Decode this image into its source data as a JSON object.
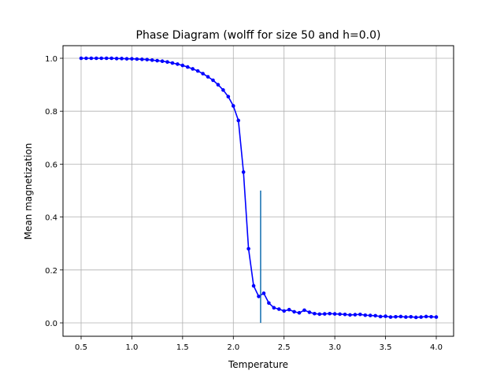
{
  "chart_data": {
    "type": "line",
    "title": "Phase Diagram (wolff for size 50 and h=0.0)",
    "xlabel": "Temperature",
    "ylabel": "Mean magnetization",
    "xlim": [
      0.5,
      4.0
    ],
    "ylim": [
      0.0,
      1.0
    ],
    "x_ticks": [
      "0.5",
      "1.0",
      "1.5",
      "2.0",
      "2.5",
      "3.0",
      "3.5",
      "4.0"
    ],
    "y_ticks": [
      "0.0",
      "0.2",
      "0.4",
      "0.6",
      "0.8",
      "1.0"
    ],
    "grid": true,
    "legend": "none",
    "line_color": "#0000ff",
    "marker_color": "#0000ff",
    "vline_color": "#1f77b4",
    "vline": {
      "x": 2.269,
      "y0": 0.0,
      "y1": 0.5
    },
    "x": [
      0.5,
      0.55,
      0.6,
      0.65,
      0.7,
      0.75,
      0.8,
      0.85,
      0.9,
      0.95,
      1.0,
      1.05,
      1.1,
      1.15,
      1.2,
      1.25,
      1.3,
      1.35,
      1.4,
      1.45,
      1.5,
      1.55,
      1.6,
      1.65,
      1.7,
      1.75,
      1.8,
      1.85,
      1.9,
      1.95,
      2.0,
      2.05,
      2.1,
      2.15,
      2.2,
      2.25,
      2.3,
      2.35,
      2.4,
      2.45,
      2.5,
      2.55,
      2.6,
      2.65,
      2.7,
      2.75,
      2.8,
      2.85,
      2.9,
      2.95,
      3.0,
      3.05,
      3.1,
      3.15,
      3.2,
      3.25,
      3.3,
      3.35,
      3.4,
      3.45,
      3.5,
      3.55,
      3.6,
      3.65,
      3.7,
      3.75,
      3.8,
      3.85,
      3.9,
      3.95,
      4.0
    ],
    "y": [
      1.0,
      1.0,
      1.0,
      1.0,
      1.0,
      1.0,
      1.0,
      0.999,
      0.999,
      0.998,
      0.998,
      0.997,
      0.996,
      0.995,
      0.993,
      0.991,
      0.989,
      0.986,
      0.982,
      0.978,
      0.973,
      0.967,
      0.96,
      0.952,
      0.942,
      0.93,
      0.917,
      0.9,
      0.88,
      0.855,
      0.82,
      0.765,
      0.57,
      0.28,
      0.14,
      0.1,
      0.112,
      0.075,
      0.057,
      0.052,
      0.045,
      0.05,
      0.042,
      0.038,
      0.048,
      0.04,
      0.035,
      0.033,
      0.034,
      0.035,
      0.034,
      0.033,
      0.032,
      0.03,
      0.031,
      0.032,
      0.029,
      0.028,
      0.027,
      0.024,
      0.025,
      0.022,
      0.023,
      0.024,
      0.022,
      0.023,
      0.021,
      0.022,
      0.024,
      0.023,
      0.022
    ]
  }
}
